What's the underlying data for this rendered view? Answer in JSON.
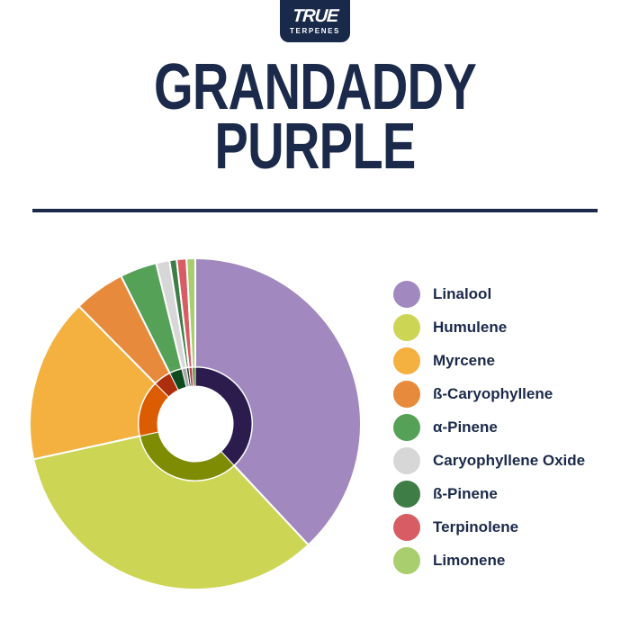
{
  "brand": {
    "line1": "TRUE",
    "line2": "TERPENES"
  },
  "title": {
    "line1": "GRANDADDY",
    "line2": "PURPLE"
  },
  "colors": {
    "navy_text": "#1b2a4a",
    "logo_background": "#18294a",
    "background": "#ffffff",
    "slice_stroke": "#ffffff"
  },
  "chart_data": {
    "type": "pie",
    "title": "Grandaddy Purple terpene profile",
    "style": "two-ring donut, starts at 12 o'clock, clockwise, white hole center",
    "legend_position": "right",
    "items": [
      {
        "label": "Linalool",
        "value": 38.0,
        "color": "#a189c0",
        "inner_color": "#2c1c4d"
      },
      {
        "label": "Humulene",
        "value": 33.5,
        "color": "#ccd554",
        "inner_color": "#7d8c03"
      },
      {
        "label": "Myrcene",
        "value": 16.0,
        "color": "#f4b13f",
        "inner_color": "#dc5c02"
      },
      {
        "label": "ß-Caryophyllene",
        "value": 5.0,
        "color": "#e78a3b",
        "inner_color": "#ac2e0d"
      },
      {
        "label": "α-Pinene",
        "value": 3.6,
        "color": "#55a158",
        "inner_color": "#0d4a20"
      },
      {
        "label": "Caryophyllene Oxide",
        "value": 1.3,
        "color": "#d7d7d7",
        "inner_color": "#a9a9a9"
      },
      {
        "label": "ß-Pinene",
        "value": 0.7,
        "color": "#3e7d46",
        "inner_color": "#24442a"
      },
      {
        "label": "Terpinolene",
        "value": 0.95,
        "color": "#d75c64",
        "inner_color": "#b4404a"
      },
      {
        "label": "Limonene",
        "value": 0.85,
        "color": "#a8ce6e",
        "inner_color": "#55802c"
      }
    ]
  }
}
